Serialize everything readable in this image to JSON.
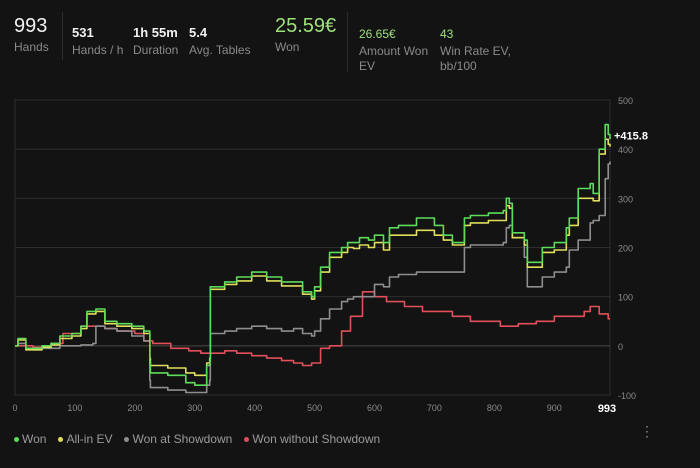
{
  "stats": {
    "hands": {
      "value": "993",
      "label": "Hands"
    },
    "hands_per_hour": {
      "value": "531",
      "label": "Hands / h"
    },
    "duration": {
      "value": "1h 55m",
      "label": "Duration"
    },
    "avg_tables": {
      "value": "5.4",
      "label": "Avg. Tables"
    },
    "won": {
      "value": "25.59€",
      "label": "Won"
    },
    "amount_won_ev": {
      "value": "26.65€",
      "label_line1": "Amount Won",
      "label_line2": "EV"
    },
    "win_rate_ev": {
      "value": "43",
      "label_line1": "Win Rate EV,",
      "label_line2": "bb/100"
    }
  },
  "colors": {
    "won": "#5ddc5a",
    "allin_ev": "#e0de5c",
    "showdown": "#8e8e8e",
    "non_showdown": "#e0505a",
    "accent_green": "#9ee27a"
  },
  "chart_data": {
    "type": "line",
    "xlim": [
      0,
      993
    ],
    "ylim": [
      -100,
      500
    ],
    "x_ticks": [
      0,
      100,
      200,
      300,
      400,
      500,
      600,
      700,
      800,
      900
    ],
    "x_tick_labels": [
      "0",
      "100",
      "200",
      "300",
      "400",
      "500",
      "600",
      "700",
      "800",
      "900"
    ],
    "x_end_label": "993",
    "y_ticks": [
      -100,
      0,
      100,
      200,
      300,
      400,
      500
    ],
    "y_tick_labels": [
      "-100",
      "0",
      "100",
      "200",
      "300",
      "400",
      "500"
    ],
    "end_value_label": "+415.8",
    "grid": true,
    "legend_position": "bottom-left",
    "series": [
      {
        "name": "Won",
        "color_key": "won",
        "x": [
          0,
          5,
          18,
          30,
          45,
          60,
          75,
          95,
          110,
          120,
          135,
          150,
          170,
          195,
          215,
          225,
          226,
          255,
          285,
          300,
          320,
          325,
          326,
          350,
          370,
          395,
          420,
          445,
          465,
          480,
          495,
          500,
          510,
          525,
          545,
          555,
          565,
          575,
          590,
          600,
          615,
          625,
          640,
          670,
          700,
          715,
          730,
          745,
          750,
          760,
          790,
          815,
          820,
          825,
          830,
          850,
          855,
          880,
          900,
          920,
          925,
          940,
          960,
          965,
          975,
          985,
          990,
          993
        ],
        "y": [
          0,
          15,
          -5,
          -5,
          0,
          5,
          20,
          25,
          40,
          70,
          75,
          50,
          45,
          40,
          30,
          -35,
          -55,
          -60,
          -75,
          -80,
          -40,
          -30,
          120,
          130,
          140,
          150,
          140,
          130,
          130,
          110,
          100,
          120,
          160,
          190,
          200,
          210,
          210,
          220,
          215,
          225,
          210,
          240,
          245,
          260,
          245,
          225,
          210,
          210,
          260,
          265,
          270,
          275,
          300,
          290,
          230,
          215,
          170,
          200,
          210,
          240,
          260,
          320,
          330,
          310,
          400,
          450,
          430,
          420
        ]
      },
      {
        "name": "All-in EV",
        "color_key": "allin_ev",
        "x": [
          0,
          5,
          18,
          30,
          45,
          60,
          75,
          95,
          110,
          120,
          135,
          150,
          170,
          195,
          215,
          225,
          226,
          255,
          285,
          300,
          320,
          325,
          326,
          350,
          370,
          395,
          420,
          445,
          465,
          480,
          495,
          500,
          510,
          525,
          545,
          555,
          565,
          575,
          590,
          600,
          615,
          625,
          640,
          670,
          700,
          715,
          730,
          745,
          750,
          760,
          790,
          815,
          820,
          825,
          830,
          850,
          855,
          880,
          900,
          920,
          925,
          940,
          960,
          965,
          975,
          985,
          990,
          993
        ],
        "y": [
          0,
          12,
          -8,
          -8,
          -3,
          2,
          15,
          20,
          35,
          65,
          70,
          45,
          40,
          35,
          25,
          -25,
          -40,
          -45,
          -55,
          -60,
          -35,
          -25,
          115,
          125,
          132,
          142,
          132,
          122,
          122,
          105,
          95,
          112,
          150,
          180,
          190,
          200,
          198,
          205,
          200,
          210,
          195,
          225,
          225,
          235,
          225,
          215,
          205,
          205,
          245,
          250,
          255,
          255,
          285,
          280,
          220,
          205,
          160,
          190,
          195,
          225,
          245,
          300,
          300,
          295,
          390,
          420,
          410,
          405
        ]
      },
      {
        "name": "Won at Showdown",
        "color_key": "showdown",
        "x": [
          0,
          5,
          18,
          30,
          45,
          60,
          75,
          95,
          110,
          130,
          135,
          150,
          170,
          195,
          215,
          225,
          226,
          255,
          285,
          300,
          320,
          325,
          326,
          350,
          370,
          395,
          420,
          445,
          465,
          480,
          495,
          500,
          510,
          525,
          545,
          555,
          565,
          575,
          590,
          600,
          615,
          625,
          640,
          670,
          700,
          715,
          730,
          745,
          750,
          760,
          790,
          815,
          820,
          825,
          830,
          850,
          855,
          880,
          900,
          920,
          925,
          940,
          960,
          965,
          975,
          985,
          990,
          993
        ],
        "y": [
          0,
          5,
          -5,
          -8,
          -5,
          -5,
          0,
          0,
          2,
          5,
          40,
          35,
          30,
          20,
          10,
          -70,
          -85,
          -90,
          -95,
          -95,
          -80,
          -70,
          25,
          30,
          35,
          40,
          35,
          30,
          35,
          25,
          20,
          30,
          55,
          75,
          90,
          95,
          100,
          100,
          100,
          125,
          120,
          140,
          145,
          150,
          150,
          150,
          150,
          150,
          200,
          205,
          205,
          210,
          240,
          245,
          220,
          180,
          120,
          140,
          150,
          160,
          195,
          215,
          250,
          255,
          265,
          340,
          370,
          375
        ]
      },
      {
        "name": "Won without Showdown",
        "color_key": "non_showdown",
        "x": [
          0,
          30,
          60,
          80,
          110,
          130,
          150,
          170,
          200,
          215,
          230,
          260,
          290,
          310,
          330,
          350,
          370,
          395,
          420,
          445,
          465,
          480,
          495,
          510,
          525,
          545,
          560,
          580,
          600,
          620,
          650,
          680,
          700,
          730,
          760,
          790,
          810,
          840,
          870,
          900,
          930,
          950,
          960,
          975,
          990,
          993
        ],
        "y": [
          0,
          -3,
          5,
          25,
          40,
          40,
          35,
          30,
          25,
          10,
          5,
          -5,
          -10,
          -15,
          -15,
          -10,
          -15,
          -20,
          -25,
          -30,
          -35,
          -40,
          -35,
          -5,
          0,
          30,
          60,
          110,
          100,
          90,
          80,
          70,
          70,
          60,
          50,
          50,
          40,
          45,
          50,
          60,
          60,
          70,
          80,
          65,
          55,
          55
        ]
      }
    ]
  },
  "legend": [
    {
      "label": "Won",
      "color_key": "won"
    },
    {
      "label": "All-in EV",
      "color_key": "allin_ev"
    },
    {
      "label": "Won at Showdown",
      "color_key": "showdown"
    },
    {
      "label": "Won without Showdown",
      "color_key": "non_showdown"
    }
  ]
}
